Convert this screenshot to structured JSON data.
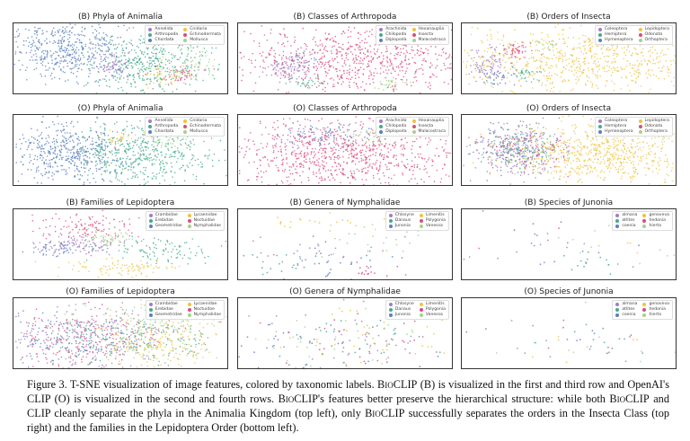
{
  "palette": [
    "#a27cc4",
    "#45ab8c",
    "#5b7fbf",
    "#efc341",
    "#dc4d7e",
    "#a4d38a"
  ],
  "chart_data": [
    {
      "type": "scatter",
      "title": "(B) Phyla of Animalia",
      "legend": [
        "Annelida",
        "Arthropoda",
        "Chordata",
        "Cnidaria",
        "Echinodermata",
        "Mollusca"
      ],
      "legend_placement": "top-right"
    },
    {
      "type": "scatter",
      "title": "(B) Classes of Arthropoda",
      "legend": [
        "Arachnida",
        "Chilopoda",
        "Diplopoda",
        "Hexanauplia",
        "Insecta",
        "Malacostraca"
      ],
      "legend_placement": "top-right"
    },
    {
      "type": "scatter",
      "title": "(B) Orders of Insecta",
      "legend": [
        "Coleoptera",
        "Hemiptera",
        "Hymenoptera",
        "Lepidoptera",
        "Odonata",
        "Orthoptera"
      ],
      "legend_placement": "top-right"
    },
    {
      "type": "scatter",
      "title": "(O) Phyla of Animalia",
      "legend": [
        "Annelida",
        "Arthropoda",
        "Chordata",
        "Cnidaria",
        "Echinodermata",
        "Mollusca"
      ],
      "legend_placement": "top-right"
    },
    {
      "type": "scatter",
      "title": "(O) Classes of Arthropoda",
      "legend": [
        "Arachnida",
        "Chilopoda",
        "Diplopoda",
        "Hexanauplia",
        "Insecta",
        "Malacostraca"
      ],
      "legend_placement": "top-right"
    },
    {
      "type": "scatter",
      "title": "(O) Orders of Insecta",
      "legend": [
        "Coleoptera",
        "Hemiptera",
        "Hymenoptera",
        "Lepidoptera",
        "Odonata",
        "Orthoptera"
      ],
      "legend_placement": "top-right"
    },
    {
      "type": "scatter",
      "title": "(B) Families of Lepidoptera",
      "legend": [
        "Crambidae",
        "Erebidae",
        "Geometridae",
        "Lycaenidae",
        "Noctuidae",
        "Nymphalidae"
      ],
      "legend_placement": "top-right"
    },
    {
      "type": "scatter",
      "title": "(B) Genera of Nymphalidae",
      "legend": [
        "Chlosyne",
        "Danaus",
        "Junonia",
        "Limenitis",
        "Polygonia",
        "Vanessa"
      ],
      "legend_placement": "top-right"
    },
    {
      "type": "scatter",
      "title": "(B) Species of Junonia",
      "legend": [
        "almana",
        "atlites",
        "coenia",
        "genoveva",
        "hedonia",
        "hierta"
      ],
      "legend_placement": "top-right"
    },
    {
      "type": "scatter",
      "title": "(O) Families of Lepidoptera",
      "legend": [
        "Crambidae",
        "Erebidae",
        "Geometridae",
        "Lycaenidae",
        "Noctuidae",
        "Nymphalidae"
      ],
      "legend_placement": "top-right"
    },
    {
      "type": "scatter",
      "title": "(O) Genera of Nymphalidae",
      "legend": [
        "Chlosyne",
        "Danaus",
        "Junonia",
        "Limenitis",
        "Polygonia",
        "Vanessa"
      ],
      "legend_placement": "top-right"
    },
    {
      "type": "scatter",
      "title": "(O) Species of Junonia",
      "legend": [
        "almana",
        "atlites",
        "coenia",
        "genoveva",
        "hedonia",
        "hierta"
      ],
      "legend_placement": "top-right"
    }
  ],
  "caption": {
    "p1": "Figure 3. T-SNE visualization of image features, colored by taxonomic labels. ",
    "bioclip": "BioCLIP",
    "p2": " (B) is visualized in the first and third row and OpenAI's CLIP (O) is visualized in the second and fourth rows. ",
    "p3": "'s features better preserve the hierarchical structure: while both ",
    "p4": " and CLIP cleanly separate the phyla in the Animalia Kingdom (top left), only ",
    "p5": " successfully separates the orders in the Insecta Class (top right) and the families in the Lepidoptera Order (bottom left)."
  }
}
